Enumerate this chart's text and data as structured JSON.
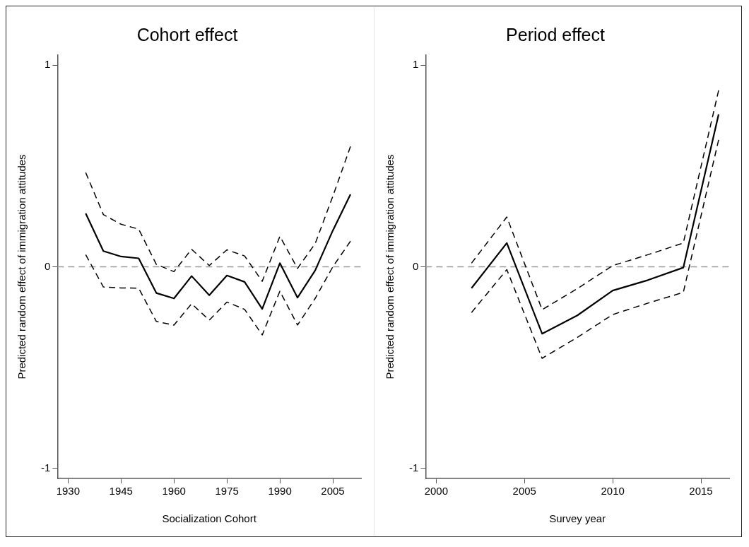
{
  "chart_data": [
    {
      "type": "line",
      "title": "Cohort effect",
      "xlabel": "Socialization Cohort",
      "ylabel": "Predicted random effect of immigration attitudes",
      "x": [
        1935,
        1940,
        1945,
        1950,
        1955,
        1960,
        1965,
        1970,
        1975,
        1980,
        1985,
        1990,
        1995,
        2000,
        2005,
        2010
      ],
      "xlim": [
        1927,
        2013
      ],
      "xticks": [
        1930,
        1945,
        1960,
        1975,
        1990,
        2005
      ],
      "ylim": [
        -1.05,
        1.05
      ],
      "yticks": [
        -1,
        0,
        1
      ],
      "grid": false,
      "legend": false,
      "marker": "none",
      "ref_lines": [
        {
          "axis": "y",
          "value": 0,
          "color": "#999999",
          "line_style": "dashed"
        }
      ],
      "series": [
        {
          "color": "#000000",
          "line_style": "solid",
          "values": [
            0.265,
            0.078,
            0.051,
            0.042,
            -0.13,
            -0.157,
            -0.046,
            -0.141,
            -0.043,
            -0.075,
            -0.209,
            0.018,
            -0.153,
            -0.018,
            0.18,
            0.359
          ]
        },
        {
          "color": "#000000",
          "line_style": "dashed",
          "values": [
            0.467,
            0.259,
            0.211,
            0.187,
            0.012,
            -0.024,
            0.087,
            0.006,
            0.084,
            0.054,
            -0.072,
            0.151,
            -0.008,
            0.115,
            0.35,
            0.597
          ]
        },
        {
          "color": "#000000",
          "line_style": "dashed",
          "values": [
            0.06,
            -0.1,
            -0.105,
            -0.106,
            -0.271,
            -0.289,
            -0.183,
            -0.265,
            -0.175,
            -0.211,
            -0.338,
            -0.121,
            -0.289,
            -0.157,
            0.0,
            0.127
          ]
        }
      ]
    },
    {
      "type": "line",
      "title": "Period effect",
      "xlabel": "Survey year",
      "ylabel": "Predicted random effect of immigration attitudes",
      "x": [
        2002,
        2004,
        2006,
        2008,
        2010,
        2012,
        2014,
        2016
      ],
      "xlim": [
        1999.4,
        2016.6
      ],
      "xticks": [
        2000,
        2005,
        2010,
        2015
      ],
      "ylim": [
        -1.05,
        1.05
      ],
      "yticks": [
        -1,
        0,
        1
      ],
      "grid": false,
      "legend": false,
      "marker": "none",
      "ref_lines": [
        {
          "axis": "y",
          "value": 0,
          "color": "#999999",
          "line_style": "dashed"
        }
      ],
      "series": [
        {
          "color": "#000000",
          "line_style": "solid",
          "values": [
            -0.106,
            0.118,
            -0.332,
            -0.241,
            -0.118,
            -0.066,
            -0.004,
            0.756
          ]
        },
        {
          "color": "#000000",
          "line_style": "dashed",
          "values": [
            0.018,
            0.247,
            -0.213,
            -0.108,
            0.006,
            0.06,
            0.118,
            0.875
          ]
        },
        {
          "color": "#000000",
          "line_style": "dashed",
          "values": [
            -0.227,
            -0.014,
            -0.454,
            -0.35,
            -0.237,
            -0.18,
            -0.127,
            0.63
          ]
        }
      ]
    }
  ]
}
